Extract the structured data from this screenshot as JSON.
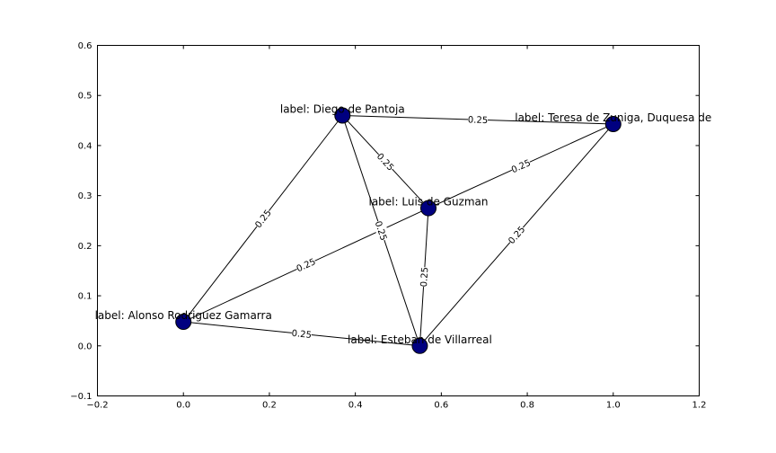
{
  "chart_data": {
    "type": "network",
    "xlim": [
      -0.2,
      1.2
    ],
    "ylim": [
      -0.1,
      0.6
    ],
    "x_ticks": [
      "−0.2",
      "0.0",
      "0.2",
      "0.4",
      "0.6",
      "0.8",
      "1.0",
      "1.2"
    ],
    "y_ticks": [
      "−0.1",
      "0.0",
      "0.1",
      "0.2",
      "0.3",
      "0.4",
      "0.5",
      "0.6"
    ],
    "nodes": [
      {
        "id": "alonso",
        "x": 0.0,
        "y": 0.048,
        "label": "label: Alonso Rodriguez Gamarra"
      },
      {
        "id": "diego",
        "x": 0.37,
        "y": 0.46,
        "label": "label: Diego de Pantoja"
      },
      {
        "id": "luis",
        "x": 0.57,
        "y": 0.275,
        "label": "label: Luis de Guzman"
      },
      {
        "id": "esteban",
        "x": 0.55,
        "y": 0.0,
        "label": "label: Esteban de Villarreal"
      },
      {
        "id": "teresa",
        "x": 1.0,
        "y": 0.443,
        "label": "label: Teresa de Zuniga, Duquesa de"
      }
    ],
    "edges": [
      {
        "source": "alonso",
        "target": "diego",
        "weight": "0.25"
      },
      {
        "source": "alonso",
        "target": "luis",
        "weight": "0.25"
      },
      {
        "source": "alonso",
        "target": "esteban",
        "weight": "0.25"
      },
      {
        "source": "diego",
        "target": "luis",
        "weight": "0.25"
      },
      {
        "source": "diego",
        "target": "esteban",
        "weight": "0.25"
      },
      {
        "source": "diego",
        "target": "teresa",
        "weight": "0.25"
      },
      {
        "source": "luis",
        "target": "esteban",
        "weight": "0.25"
      },
      {
        "source": "luis",
        "target": "teresa",
        "weight": "0.25"
      },
      {
        "source": "esteban",
        "target": "teresa",
        "weight": "0.25"
      }
    ],
    "node_color": "#000080",
    "edge_color": "#000000"
  }
}
